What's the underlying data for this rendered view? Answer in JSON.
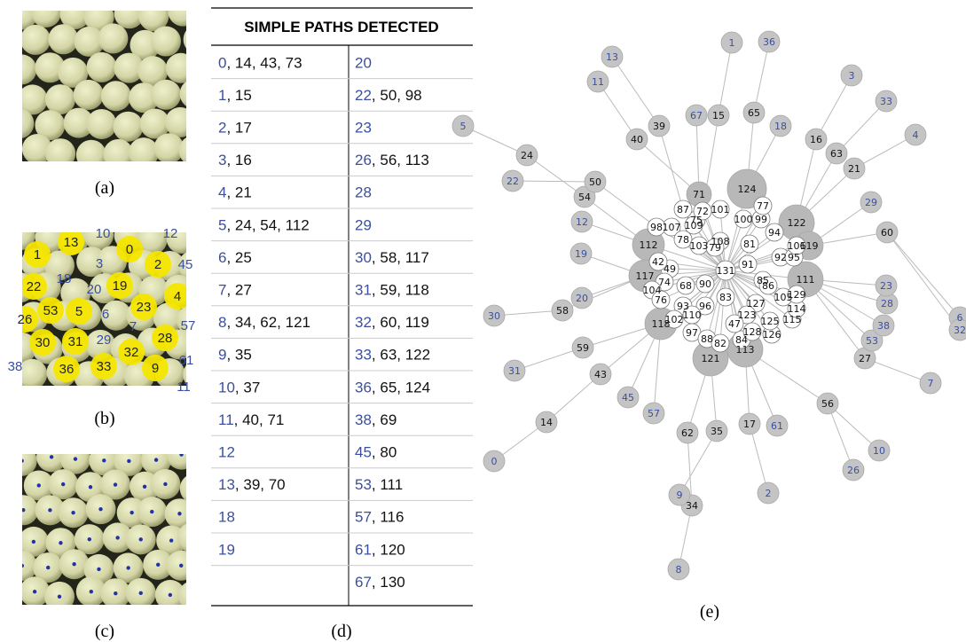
{
  "panels": {
    "a": "(a)",
    "b": "(b)",
    "c": "(c)",
    "d": "(d)",
    "e": "(e)"
  },
  "image_b_labels": [
    "10",
    "12",
    "1",
    "13",
    "3",
    "0",
    "2",
    "45",
    "22",
    "18",
    "20",
    "19",
    "4",
    "26",
    "53",
    "5",
    "6",
    "23",
    "7",
    "57",
    "30",
    "31",
    "29",
    "28",
    "32",
    "61",
    "38",
    "36",
    "33",
    "9",
    "11"
  ],
  "table": {
    "header": "SIMPLE PATHS DETECTED",
    "left": [
      [
        "0",
        ", 14, 43, 73"
      ],
      [
        "1",
        ", 15"
      ],
      [
        "2",
        ", 17"
      ],
      [
        "3",
        ", 16"
      ],
      [
        "4",
        ", 21"
      ],
      [
        "5",
        ", 24, 54, 112"
      ],
      [
        "6",
        ", 25"
      ],
      [
        "7",
        ", 27"
      ],
      [
        "8",
        ", 34, 62, 121"
      ],
      [
        "9",
        ", 35"
      ],
      [
        "10",
        ", 37"
      ],
      [
        "11",
        ", 40, 71"
      ],
      [
        "12"
      ],
      [
        "13",
        ", 39, 70"
      ],
      [
        "18"
      ],
      [
        "19"
      ]
    ],
    "right": [
      [
        "20"
      ],
      [
        "22",
        ", 50, 98"
      ],
      [
        "23"
      ],
      [
        "26",
        ", 56, 113"
      ],
      [
        "28"
      ],
      [
        "29"
      ],
      [
        "30",
        ", 58, 117"
      ],
      [
        "31",
        ", 59, 118"
      ],
      [
        "32",
        ", 60, 119"
      ],
      [
        "33",
        ", 63, 122"
      ],
      [
        "36",
        ", 65, 124"
      ],
      [
        "38",
        ", 69"
      ],
      [
        "45",
        ", 80"
      ],
      [
        "53",
        ", 111"
      ],
      [
        "57",
        ", 116"
      ],
      [
        "61",
        ", 120"
      ],
      [
        "67",
        ", 130"
      ]
    ]
  },
  "graph": {
    "nodes": [
      "131",
      "91",
      "85",
      "81",
      "108",
      "75",
      "101",
      "100",
      "99",
      "77",
      "87",
      "72",
      "109",
      "107",
      "98",
      "78",
      "103",
      "79",
      "49",
      "42",
      "74",
      "104",
      "76",
      "68",
      "90",
      "93",
      "96",
      "83",
      "102",
      "110",
      "97",
      "88",
      "82",
      "84",
      "127",
      "123",
      "47",
      "128",
      "126",
      "125",
      "115",
      "114",
      "86",
      "105",
      "129",
      "94",
      "92",
      "95",
      "106",
      "71",
      "124",
      "122",
      "119",
      "111",
      "112",
      "117",
      "118",
      "121",
      "113",
      "24",
      "54",
      "50",
      "40",
      "39",
      "15",
      "65",
      "16",
      "63",
      "21",
      "60",
      "58",
      "59",
      "43",
      "14",
      "62",
      "35",
      "17",
      "56",
      "27",
      "34",
      "5",
      "22",
      "12",
      "19",
      "30",
      "20",
      "31",
      "0",
      "45",
      "57",
      "9",
      "8",
      "2",
      "61",
      "26",
      "10",
      "7",
      "53",
      "38",
      "28",
      "23",
      "29",
      "4",
      "33",
      "3",
      "18",
      "36",
      "1",
      "67",
      "13",
      "11",
      "6",
      "32"
    ]
  }
}
